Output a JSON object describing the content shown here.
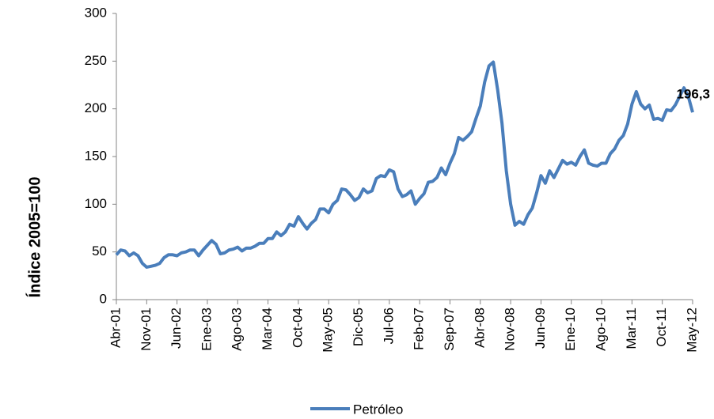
{
  "chart_data": {
    "type": "line",
    "ylabel": "Índice 2005=100",
    "categories": [
      "Abr-01",
      null,
      null,
      null,
      null,
      null,
      null,
      "Nov-01",
      null,
      null,
      null,
      null,
      null,
      null,
      "Jun-02",
      null,
      null,
      null,
      null,
      null,
      null,
      "Ene-03",
      null,
      null,
      null,
      null,
      null,
      null,
      "Ago-03",
      null,
      null,
      null,
      null,
      null,
      null,
      "Mar-04",
      null,
      null,
      null,
      null,
      null,
      null,
      "Oct-04",
      null,
      null,
      null,
      null,
      null,
      null,
      "May-05",
      null,
      null,
      null,
      null,
      null,
      null,
      "Dic-05",
      null,
      null,
      null,
      null,
      null,
      null,
      "Jul-06",
      null,
      null,
      null,
      null,
      null,
      null,
      "Feb-07",
      null,
      null,
      null,
      null,
      null,
      null,
      "Sep-07",
      null,
      null,
      null,
      null,
      null,
      null,
      "Abr-08",
      null,
      null,
      null,
      null,
      null,
      null,
      "Nov-08",
      null,
      null,
      null,
      null,
      null,
      null,
      "Jun-09",
      null,
      null,
      null,
      null,
      null,
      null,
      "Ene-10",
      null,
      null,
      null,
      null,
      null,
      null,
      "Ago-10",
      null,
      null,
      null,
      null,
      null,
      null,
      "Mar-11",
      null,
      null,
      null,
      null,
      null,
      null,
      "Oct-11",
      null,
      null,
      null,
      null,
      null,
      null,
      "May-12"
    ],
    "series": [
      {
        "name": "Petróleo",
        "color": "#4a7ebb",
        "values": [
          47,
          52,
          51,
          46,
          49,
          46,
          38,
          34,
          35,
          36,
          38,
          44,
          47,
          47,
          46,
          49,
          50,
          52,
          52,
          46,
          52,
          57,
          62,
          58,
          48,
          49,
          52,
          53,
          55,
          51,
          54,
          54,
          56,
          59,
          59,
          64,
          64,
          71,
          67,
          71,
          79,
          77,
          87,
          80,
          74,
          80,
          84,
          95,
          95,
          91,
          100,
          104,
          116,
          115,
          110,
          104,
          107,
          116,
          112,
          114,
          127,
          130,
          129,
          136,
          134,
          116,
          108,
          110,
          114,
          100,
          106,
          111,
          123,
          124,
          128,
          138,
          131,
          143,
          153,
          170,
          167,
          171,
          176,
          190,
          203,
          228,
          245,
          249,
          220,
          185,
          135,
          100,
          78,
          82,
          79,
          89,
          96,
          112,
          130,
          122,
          135,
          128,
          137,
          146,
          142,
          144,
          141,
          150,
          157,
          143,
          141,
          140,
          143,
          143,
          153,
          158,
          167,
          172,
          184,
          205,
          218,
          205,
          200,
          204,
          189,
          190,
          188,
          199,
          198,
          204,
          213,
          222,
          213,
          196.3
        ],
        "value_labels": [
          null,
          null,
          null,
          null,
          null,
          null,
          null,
          null,
          null,
          null,
          null,
          null,
          null,
          null,
          null,
          null,
          null,
          null,
          null,
          null,
          null,
          null,
          null,
          null,
          null,
          null,
          null,
          null,
          null,
          null,
          null,
          null,
          null,
          null,
          null,
          null,
          null,
          null,
          null,
          null,
          null,
          null,
          null,
          null,
          null,
          null,
          null,
          null,
          null,
          null,
          null,
          null,
          null,
          null,
          null,
          null,
          null,
          null,
          null,
          null,
          null,
          null,
          null,
          null,
          null,
          null,
          null,
          null,
          null,
          null,
          null,
          null,
          null,
          null,
          null,
          null,
          null,
          null,
          null,
          null,
          null,
          null,
          null,
          null,
          null,
          null,
          null,
          null,
          null,
          null,
          null,
          null,
          null,
          null,
          null,
          null,
          null,
          null,
          null,
          null,
          null,
          null,
          null,
          null,
          null,
          null,
          null,
          null,
          null,
          null,
          null,
          null,
          null,
          null,
          null,
          null,
          null,
          null,
          null,
          null,
          null,
          null,
          null,
          null,
          null,
          null,
          null,
          null,
          null,
          null,
          null,
          null,
          null,
          "196,3"
        ]
      }
    ],
    "ylim": [
      0,
      300
    ],
    "yticks": [
      0,
      50,
      100,
      150,
      200,
      250,
      300
    ],
    "grid": false,
    "legend": "bottom"
  }
}
